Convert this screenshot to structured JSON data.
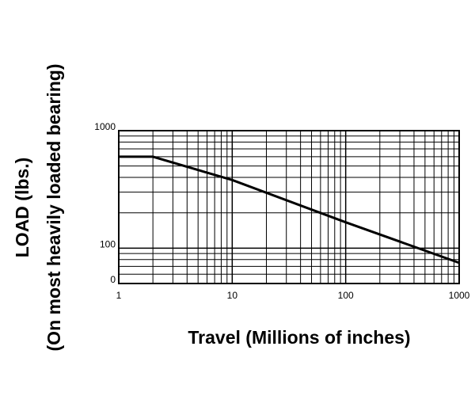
{
  "chart_data": {
    "type": "line",
    "x_label": "Travel (Millions of inches)",
    "y_label": [
      "LOAD (lbs.)",
      "(On most heavily loaded bearing)"
    ],
    "x": [
      1,
      2,
      10,
      100,
      1000
    ],
    "series": [
      {
        "color": "#000000",
        "values": [
          600,
          600,
          380,
          166,
          75
        ]
      }
    ],
    "xlim": [
      1,
      1000
    ],
    "ylim": [
      50,
      1000
    ],
    "xticks": [
      1,
      10,
      100,
      1000
    ],
    "yticks": [
      {
        "value": 50,
        "label": "0"
      },
      100,
      1000
    ],
    "xscale": "log",
    "yscale": "log",
    "grid": true
  }
}
